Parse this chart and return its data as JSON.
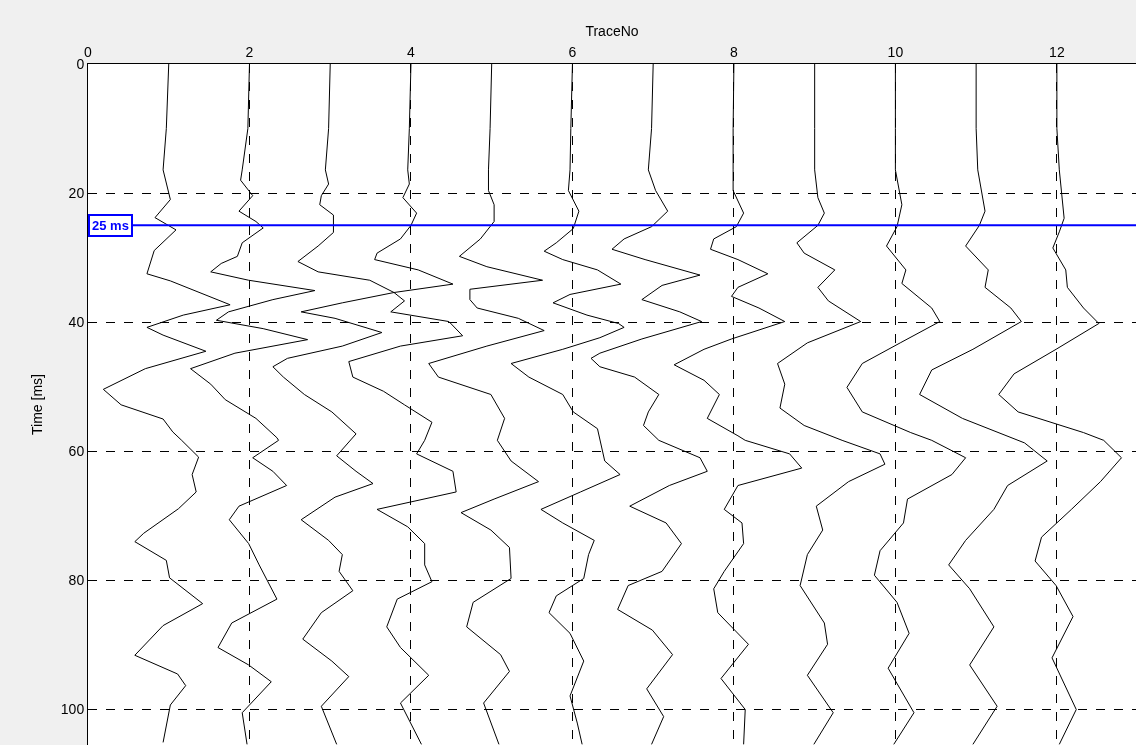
{
  "chart_data": {
    "type": "line",
    "xlabel": "TraceNo",
    "ylabel": "Time [ms]",
    "xlim": [
      0,
      12.98
    ],
    "ylim": [
      105.5,
      0
    ],
    "xticks": [
      0,
      2,
      4,
      6,
      8,
      10,
      12
    ],
    "yticks": [
      0,
      20,
      40,
      60,
      80,
      100
    ],
    "grid": true,
    "marker": "none",
    "line_style": "solid",
    "ref_lines": [
      {
        "axis": "y",
        "value": 25,
        "label": "25 ms",
        "color": "#0000ff"
      }
    ],
    "series": [
      {
        "color": "#000000",
        "x": [
          1.0,
          0.97,
          0.93,
          1.02,
          0.83,
          1.09,
          0.82,
          0.73,
          1.02,
          1.76,
          1.18,
          0.73,
          0.93,
          1.46,
          0.71,
          0.19,
          0.41,
          0.93,
          1.05,
          1.16,
          1.37,
          1.29,
          1.34,
          1.12,
          0.69,
          0.58,
          0.97,
          1.01,
          1.42,
          0.93,
          0.58,
          1.11,
          1.21,
          1.02,
          0.93
        ],
        "values": [
          0,
          10,
          16.4,
          21,
          23.8,
          25.7,
          28.9,
          32.5,
          33.6,
          37.3,
          38.9,
          40.8,
          42,
          44.5,
          47.2,
          50.4,
          52.8,
          55,
          57,
          58.3,
          60.9,
          63.6,
          66.3,
          68.9,
          72.7,
          74,
          76.9,
          79.6,
          83.6,
          87,
          91.6,
          94.5,
          96.3,
          99.3,
          105.1
        ]
      },
      {
        "color": "#000000",
        "x": [
          2.0,
          1.98,
          1.91,
          1.89,
          2.04,
          1.87,
          2.08,
          2.17,
          1.91,
          1.85,
          1.65,
          1.52,
          1.99,
          2.81,
          2.29,
          1.74,
          1.59,
          2.17,
          2.72,
          1.82,
          1.27,
          1.52,
          1.7,
          2.08,
          2.34,
          2.36,
          2.04,
          2.29,
          2.46,
          1.87,
          1.75,
          1.99,
          2.12,
          2.34,
          1.78,
          1.61,
          1.99,
          2.27,
          1.91,
          1.97
        ],
        "values": [
          0,
          10,
          16.4,
          18,
          20.4,
          22.8,
          24.4,
          25.4,
          27.7,
          29.8,
          30.9,
          32.2,
          33.5,
          35.1,
          36.5,
          38.4,
          39.7,
          41,
          42.7,
          44.8,
          47.2,
          49.6,
          52,
          54.9,
          57.9,
          58.3,
          61,
          63.1,
          65.3,
          68.5,
          70.6,
          74.3,
          77.6,
          82.9,
          86.6,
          90.4,
          93.1,
          95.7,
          100.5,
          105.4
        ]
      },
      {
        "color": "#000000",
        "x": [
          3.0,
          2.98,
          2.94,
          2.98,
          2.89,
          2.87,
          3.04,
          3.04,
          2.85,
          2.6,
          2.85,
          3.49,
          3.79,
          3.15,
          2.64,
          3.06,
          3.64,
          3.15,
          2.47,
          2.29,
          2.42,
          2.68,
          3.02,
          3.32,
          3.08,
          3.32,
          3.53,
          3.06,
          2.64,
          2.98,
          3.15,
          3.11,
          3.28,
          2.89,
          2.66,
          3.02,
          3.23,
          2.89,
          3.08
        ],
        "values": [
          0,
          10,
          16.4,
          18.6,
          20.4,
          21.8,
          23.4,
          26.1,
          28.2,
          30.6,
          32.2,
          33.5,
          35.4,
          37,
          38.4,
          39.4,
          41.6,
          43.7,
          45.6,
          46.9,
          48.5,
          51.2,
          53.9,
          57.3,
          60.7,
          63.1,
          65,
          67.1,
          70.6,
          73.8,
          76,
          78.6,
          81.6,
          85,
          89.1,
          92.5,
          94.9,
          99.5,
          105.4
        ]
      },
      {
        "color": "#000000",
        "x": [
          4.0,
          3.98,
          3.96,
          3.98,
          3.9,
          4.07,
          4.0,
          3.87,
          3.58,
          3.55,
          4.09,
          4.52,
          3.79,
          3.92,
          3.75,
          4.47,
          4.64,
          3.87,
          3.23,
          3.28,
          3.66,
          3.92,
          4.26,
          4.17,
          4.07,
          4.52,
          4.56,
          3.58,
          3.96,
          4.17,
          4.17,
          4.26,
          3.83,
          3.7,
          3.87,
          4.22,
          3.87,
          4.13
        ],
        "values": [
          0,
          10,
          16.4,
          18.6,
          20.7,
          23.1,
          25,
          27.1,
          29.3,
          30.3,
          31.9,
          34.1,
          35.4,
          36.7,
          38.4,
          39.9,
          42.1,
          43.7,
          46.1,
          48.5,
          50.7,
          52.8,
          55.5,
          58.3,
          60.4,
          63.1,
          66.3,
          69,
          71.7,
          74.3,
          77.6,
          80.2,
          82.9,
          87.2,
          90.4,
          94.7,
          99,
          105.4
        ]
      },
      {
        "color": "#000000",
        "x": [
          5.0,
          4.98,
          4.96,
          4.96,
          5.03,
          5.03,
          4.86,
          4.6,
          4.94,
          5.63,
          4.73,
          4.73,
          4.82,
          5.33,
          5.65,
          4.94,
          4.22,
          4.34,
          4.99,
          5.16,
          5.07,
          5.24,
          5.58,
          5.03,
          4.62,
          4.99,
          5.22,
          5.24,
          4.77,
          4.69,
          5.11,
          5.22,
          4.9,
          5.09
        ],
        "values": [
          0,
          10,
          16.4,
          19.6,
          21.8,
          24.4,
          27.1,
          29.8,
          31.4,
          33.5,
          34.9,
          36.5,
          37.8,
          39.4,
          41.3,
          43.7,
          46.4,
          48.5,
          51.2,
          54.9,
          58.3,
          61.5,
          64.7,
          67.4,
          69.5,
          72.2,
          74.9,
          79.7,
          83.4,
          87.2,
          91.5,
          94.1,
          99,
          105.4
        ]
      },
      {
        "color": "#000000",
        "x": [
          6.0,
          5.98,
          5.97,
          5.95,
          6.08,
          6.01,
          5.8,
          5.65,
          5.88,
          6.31,
          6.6,
          5.97,
          5.76,
          6.18,
          6.57,
          6.64,
          6.34,
          5.88,
          5.24,
          5.46,
          5.88,
          6.01,
          6.31,
          6.4,
          6.59,
          6.1,
          5.61,
          5.88,
          6.27,
          6.2,
          6.14,
          5.8,
          5.71,
          5.97,
          6.14,
          5.97,
          6.06,
          6.12
        ],
        "values": [
          0,
          10,
          16.4,
          19.6,
          22.8,
          25.5,
          27.7,
          29,
          30.3,
          31.9,
          34.1,
          35.7,
          37,
          38.9,
          40.2,
          40.8,
          42.4,
          44.2,
          46.4,
          48.5,
          51.2,
          53.9,
          56.5,
          61.5,
          63.6,
          66.3,
          69,
          71.1,
          73.8,
          76,
          79.7,
          82.4,
          85,
          88.2,
          92.5,
          97.9,
          102.1,
          105.4
        ]
      },
      {
        "color": "#000000",
        "x": [
          7.0,
          6.98,
          6.94,
          7.03,
          7.18,
          6.98,
          6.64,
          6.49,
          6.9,
          7.58,
          7.11,
          6.86,
          7.33,
          7.6,
          6.86,
          6.34,
          6.23,
          6.34,
          6.77,
          7.07,
          6.94,
          6.88,
          7.07,
          7.58,
          7.67,
          7.2,
          6.71,
          7.16,
          7.35,
          7.11,
          6.69,
          6.56,
          6.99,
          7.24,
          6.92,
          7.13,
          6.98
        ],
        "values": [
          0,
          10,
          16.4,
          19.6,
          22.8,
          25.2,
          27.1,
          28.7,
          30.3,
          32.7,
          34.3,
          36.5,
          38.4,
          39.9,
          42.6,
          44.8,
          45.6,
          46.9,
          48.5,
          51.2,
          53.9,
          56,
          58.3,
          61,
          63.1,
          65.3,
          68.5,
          71.1,
          74.3,
          78.6,
          80.8,
          84.5,
          87.7,
          91.5,
          96.8,
          101.1,
          105.4
        ]
      },
      {
        "color": "#000000",
        "x": [
          8.0,
          7.99,
          7.99,
          7.99,
          8.12,
          8.03,
          7.75,
          7.71,
          8.05,
          8.42,
          8.05,
          7.97,
          8.31,
          8.63,
          7.97,
          7.63,
          7.26,
          7.63,
          7.82,
          7.67,
          8.05,
          8.14,
          8.69,
          8.84,
          8.05,
          7.88,
          8.1,
          8.12,
          7.88,
          7.75,
          7.8,
          8.18,
          7.84,
          8.14,
          8.12
        ],
        "values": [
          0,
          10,
          16.4,
          19.6,
          23.1,
          25.2,
          27.1,
          28.7,
          30.3,
          32.5,
          34.6,
          36,
          37.8,
          39.9,
          42.6,
          44.2,
          46.6,
          49,
          51.2,
          54.9,
          57.6,
          58.3,
          60.4,
          62.6,
          65.3,
          69,
          71.1,
          74.3,
          78.6,
          81.3,
          85,
          89.9,
          95.2,
          100,
          105.4
        ]
      },
      {
        "color": "#000000",
        "x": [
          9.0,
          9.0,
          9.0,
          9.04,
          9.12,
          9.04,
          8.78,
          8.87,
          9.25,
          9.04,
          9.17,
          9.57,
          8.91,
          8.54,
          8.63,
          8.57,
          8.87,
          9.34,
          9.81,
          9.87,
          9.42,
          9.02,
          9.1,
          8.91,
          8.82,
          9.12,
          9.16,
          8.91,
          9.23,
          8.99
        ],
        "values": [
          0,
          10,
          16.4,
          20.7,
          23.1,
          25,
          27.7,
          29.3,
          31.9,
          34.6,
          36.7,
          39.9,
          43.2,
          46.4,
          49.6,
          53.3,
          56,
          58.3,
          60.4,
          62,
          64.7,
          68.5,
          72.2,
          76,
          80.8,
          86.6,
          89.9,
          94.7,
          100.5,
          105.4
        ]
      },
      {
        "color": "#000000",
        "x": [
          10.0,
          10.0,
          10.0,
          10.08,
          10.02,
          9.89,
          10.13,
          10.08,
          10.45,
          10.55,
          10.06,
          9.59,
          9.4,
          9.59,
          10.19,
          10.45,
          10.87,
          10.7,
          10.15,
          10.1,
          9.81,
          9.74,
          10.02,
          10.17,
          9.91,
          10.23,
          9.98
        ],
        "values": [
          0,
          10,
          16.4,
          21.8,
          25.2,
          28.2,
          31.9,
          34,
          37.8,
          39.9,
          43.2,
          46.4,
          50.1,
          53.9,
          57.1,
          58.3,
          61,
          63.6,
          67.4,
          71.1,
          75.4,
          79.2,
          83.4,
          88.2,
          93.6,
          100.5,
          105.4
        ]
      },
      {
        "color": "#000000",
        "x": [
          11.0,
          11.0,
          11.02,
          11.11,
          11.04,
          10.87,
          11.15,
          11.11,
          11.43,
          11.56,
          10.96,
          10.45,
          10.3,
          10.83,
          11.6,
          11.88,
          11.39,
          11.22,
          10.87,
          10.66,
          10.92,
          11.22,
          10.92,
          11.26,
          10.96
        ],
        "values": [
          0,
          10,
          16.4,
          22.8,
          25,
          28.2,
          31.9,
          34.6,
          37.8,
          39.9,
          44.2,
          47.4,
          51.2,
          54.9,
          58.7,
          61.5,
          65.3,
          69,
          73.8,
          77.6,
          81.3,
          87.2,
          93.1,
          99.5,
          105.4
        ]
      },
      {
        "color": "#000000",
        "x": [
          12.0,
          12.0,
          12.03,
          12.09,
          12.03,
          11.95,
          12.11,
          12.13,
          12.33,
          12.52,
          11.99,
          11.47,
          11.28,
          11.52,
          12.33,
          12.58,
          12.8,
          12.54,
          12.18,
          11.81,
          11.73,
          11.99,
          12.2,
          11.94,
          12.24,
          12.03
        ],
        "values": [
          0,
          10,
          16.4,
          23.9,
          26,
          28.5,
          31.9,
          34.6,
          37.8,
          40.2,
          44.2,
          48,
          51.2,
          53.9,
          57.1,
          58.3,
          61,
          64.7,
          69,
          73.3,
          77,
          80.8,
          85.6,
          92,
          100,
          105.4
        ]
      }
    ]
  }
}
